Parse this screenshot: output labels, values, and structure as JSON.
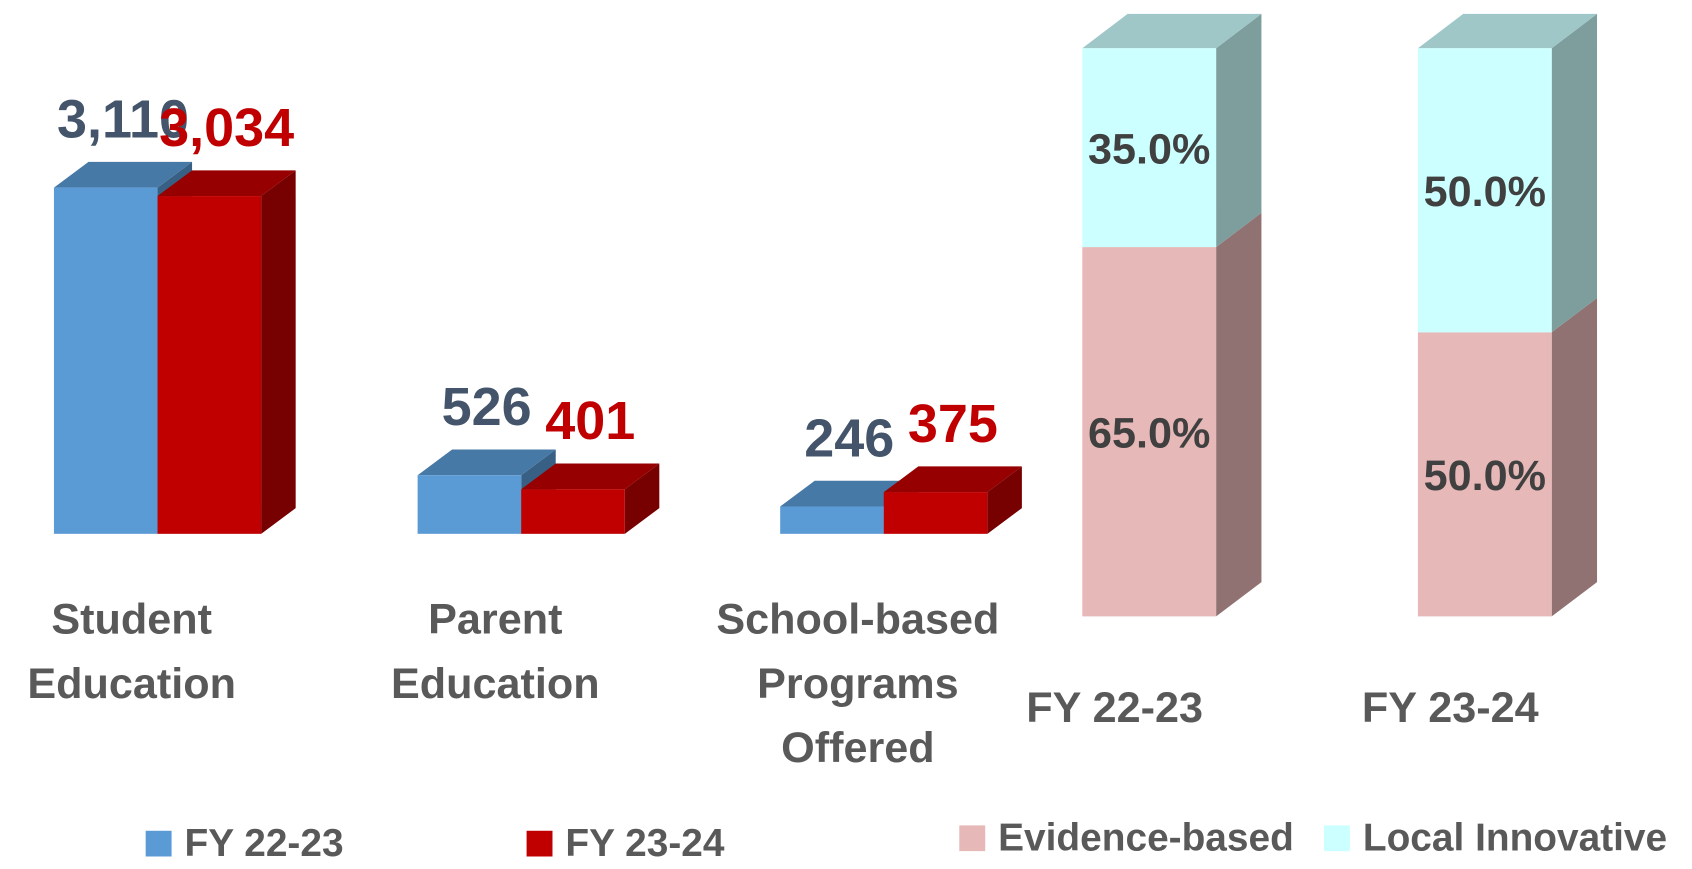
{
  "chart_data": [
    {
      "type": "bar",
      "categories": [
        "Student Education",
        "Parent Education",
        "School-based Programs Offered"
      ],
      "series": [
        {
          "name": "FY 22-23",
          "color": "#5b9bd5",
          "label_color": "#44546a",
          "values": [
            3110,
            526,
            246
          ],
          "value_labels": [
            "3,110",
            "526",
            "246"
          ]
        },
        {
          "name": "FY 23-24",
          "color": "#c00000",
          "label_color": "#c00000",
          "values": [
            3034,
            401,
            375
          ],
          "value_labels": [
            "3,034",
            "401",
            "375"
          ]
        }
      ],
      "ylim": [
        0,
        3500
      ]
    },
    {
      "type": "stacked_bar",
      "categories": [
        "FY 22-23",
        "FY 23-24"
      ],
      "series": [
        {
          "name": "Evidence-based",
          "color": "#e6b8b7",
          "values": [
            65,
            50
          ],
          "value_labels": [
            "65.0%",
            "50.0%"
          ]
        },
        {
          "name": "Local Innovative",
          "color": "#ccffff",
          "values": [
            35,
            50
          ],
          "value_labels": [
            "35.0%",
            "50.0%"
          ]
        }
      ],
      "ylim": [
        0,
        100
      ]
    }
  ]
}
